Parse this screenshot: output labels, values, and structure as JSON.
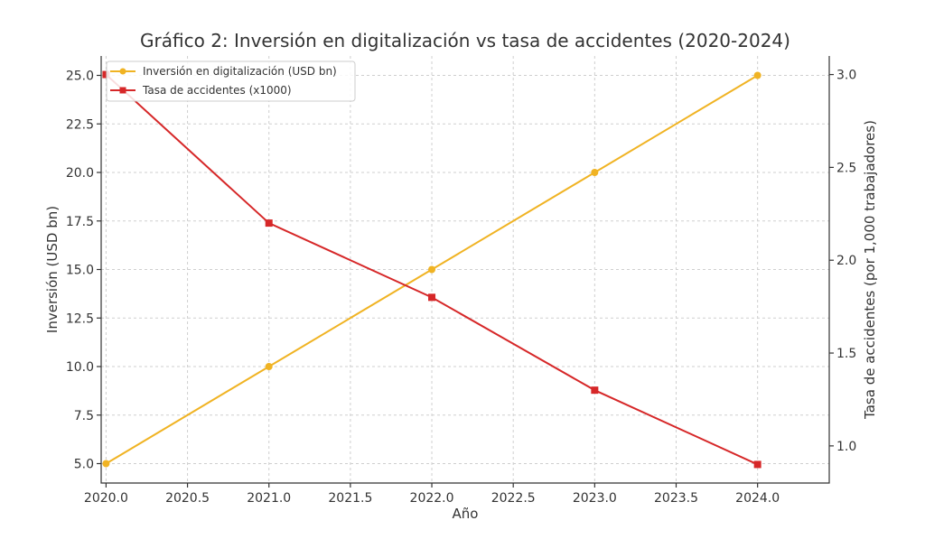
{
  "colors": {
    "series_investment": "#f0b323",
    "series_accidents": "#d62728",
    "grid": "#cfcfcf",
    "text": "#333333",
    "background": "#ffffff"
  },
  "chart_data": {
    "type": "line",
    "title": "Gráfico 2: Inversión en digitalización vs tasa de accidentes (2020-2024)",
    "xlabel": "Año",
    "ylabel_left": "Inversión (USD bn)",
    "ylabel_right": "Tasa de accidentes (por 1,000 trabajadores)",
    "x": [
      2020,
      2021,
      2022,
      2023,
      2024
    ],
    "xlim": [
      2019.97,
      2024.44
    ],
    "x_ticks": [
      "2020.0",
      "2020.5",
      "2021.0",
      "2021.5",
      "2022.0",
      "2022.5",
      "2023.0",
      "2023.5",
      "2024.0"
    ],
    "ylim_left": [
      4.0,
      26.0
    ],
    "y_ticks_left": [
      "5.0",
      "7.5",
      "10.0",
      "12.5",
      "15.0",
      "17.5",
      "20.0",
      "22.5",
      "25.0"
    ],
    "ylim_right": [
      0.8,
      3.1
    ],
    "y_ticks_right": [
      "1.0",
      "1.5",
      "2.0",
      "2.5",
      "3.0"
    ],
    "grid": true,
    "legend_position": "upper-left",
    "series": [
      {
        "name": "Inversión en digitalización (USD bn)",
        "axis": "left",
        "marker": "circle",
        "values": [
          5,
          10,
          15,
          20,
          25
        ]
      },
      {
        "name": "Tasa de accidentes (x1000)",
        "axis": "right",
        "marker": "square",
        "values": [
          3.0,
          2.2,
          1.8,
          1.3,
          0.9
        ]
      }
    ]
  }
}
